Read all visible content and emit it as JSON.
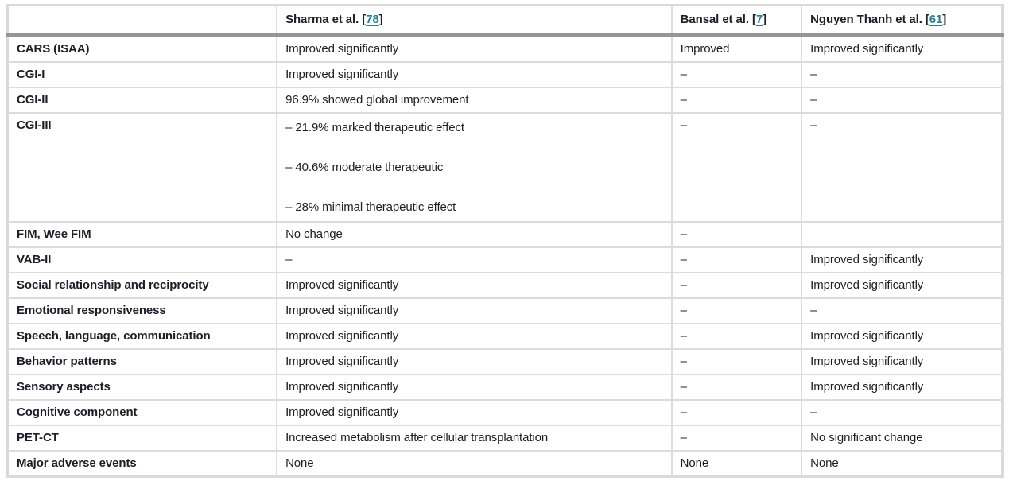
{
  "colors": {
    "text": "#1d1e27",
    "link": "#2b7b8d",
    "border_light": "#dadada",
    "border_heavy": "#959595"
  },
  "table": {
    "bracket_open": "[",
    "bracket_close": "]",
    "headers": [
      {
        "name": "",
        "ref": ""
      },
      {
        "name": "Sharma et al.",
        "ref": "78"
      },
      {
        "name": "Bansal et al.",
        "ref": "7"
      },
      {
        "name": "Nguyen Thanh et al.",
        "ref": "61"
      }
    ],
    "rows": [
      {
        "label": "CARS (ISAA)",
        "sharma": "Improved significantly",
        "bansal": "Improved",
        "nguyen": "Improved significantly"
      },
      {
        "label": "CGI-I",
        "sharma": "Improved significantly",
        "bansal": "–",
        "nguyen": "–"
      },
      {
        "label": "CGI-II",
        "sharma": "96.9% showed global improvement",
        "bansal": "–",
        "nguyen": "–"
      },
      {
        "label": "CGI-III",
        "sharma": [
          "– 21.9% marked therapeutic effect",
          "– 40.6% moderate therapeutic",
          "– 28% minimal therapeutic effect"
        ],
        "bansal": "–",
        "nguyen": "–"
      },
      {
        "label": "FIM, Wee FIM",
        "sharma": "No change",
        "bansal": "–",
        "nguyen": ""
      },
      {
        "label": "VAB-II",
        "sharma": "–",
        "bansal": "–",
        "nguyen": "Improved significantly"
      },
      {
        "label": "Social relationship and reciprocity",
        "sharma": "Improved significantly",
        "bansal": "–",
        "nguyen": "Improved significantly"
      },
      {
        "label": "Emotional responsiveness",
        "sharma": "Improved significantly",
        "bansal": "–",
        "nguyen": "–"
      },
      {
        "label": "Speech, language, communication",
        "sharma": "Improved significantly",
        "bansal": "–",
        "nguyen": "Improved significantly"
      },
      {
        "label": "Behavior patterns",
        "sharma": "Improved significantly",
        "bansal": "–",
        "nguyen": "Improved significantly"
      },
      {
        "label": "Sensory aspects",
        "sharma": "Improved significantly",
        "bansal": "–",
        "nguyen": "Improved significantly"
      },
      {
        "label": "Cognitive component",
        "sharma": "Improved significantly",
        "bansal": "–",
        "nguyen": "–"
      },
      {
        "label": "PET-CT",
        "sharma": "Increased metabolism after cellular transplantation",
        "bansal": "–",
        "nguyen": "No significant change"
      },
      {
        "label": "Major adverse events",
        "sharma": "None",
        "bansal": "None",
        "nguyen": "None"
      }
    ]
  }
}
